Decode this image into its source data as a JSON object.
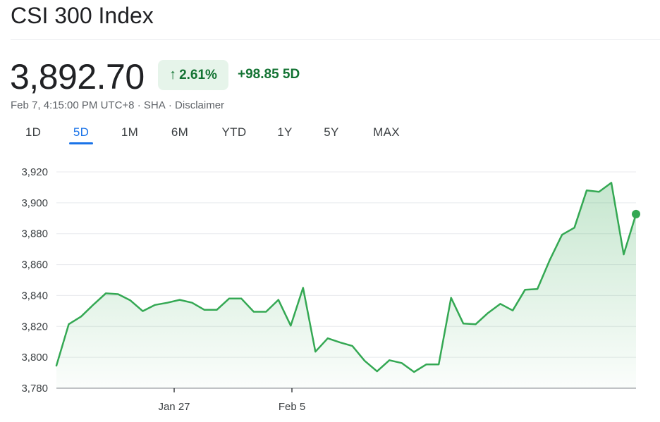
{
  "header": {
    "title": "CSI 300 Index",
    "price": "3,892.70",
    "change_percent": "2.61%",
    "change_arrow": "↑",
    "change_abs": "+98.85 5D",
    "timestamp": "Feb 7, 4:15:00 PM UTC+8",
    "exchange": "SHA",
    "disclaimer": "Disclaimer",
    "separator": "·"
  },
  "tabs": [
    "1D",
    "5D",
    "1M",
    "6M",
    "YTD",
    "1Y",
    "5Y",
    "MAX"
  ],
  "active_tab": "5D",
  "colors": {
    "positive": "#137333",
    "line": "#34a853",
    "accent": "#1a73e8"
  },
  "chart_data": {
    "type": "area",
    "title": "",
    "xlabel": "",
    "ylabel": "",
    "ylim": [
      3780,
      3920
    ],
    "yticks": [
      3920,
      3900,
      3880,
      3860,
      3840,
      3820,
      3800,
      3780
    ],
    "ytick_labels": [
      "3,920",
      "3,900",
      "3,880",
      "3,860",
      "3,840",
      "3,820",
      "3,800",
      "3,780"
    ],
    "xtick_labels": [
      "Jan 27",
      "Feb 5"
    ],
    "grid": true,
    "values": [
      3794.6,
      3821.4,
      3826.4,
      3834.1,
      3841.4,
      3840.9,
      3836.8,
      3829.9,
      3833.9,
      3835.3,
      3837.2,
      3835.3,
      3830.7,
      3830.7,
      3838.0,
      3838.0,
      3829.5,
      3829.5,
      3837.2,
      3820.5,
      3845.0,
      3803.6,
      3812.3,
      3809.6,
      3807.3,
      3797.7,
      3790.9,
      3798.1,
      3796.3,
      3790.5,
      3795.4,
      3795.4,
      3838.5,
      3821.8,
      3821.4,
      3828.7,
      3834.6,
      3830.3,
      3843.7,
      3844.2,
      3862.9,
      3879.3,
      3883.9,
      3908.0,
      3907.1,
      3913.0,
      3866.6,
      3892.7
    ]
  }
}
